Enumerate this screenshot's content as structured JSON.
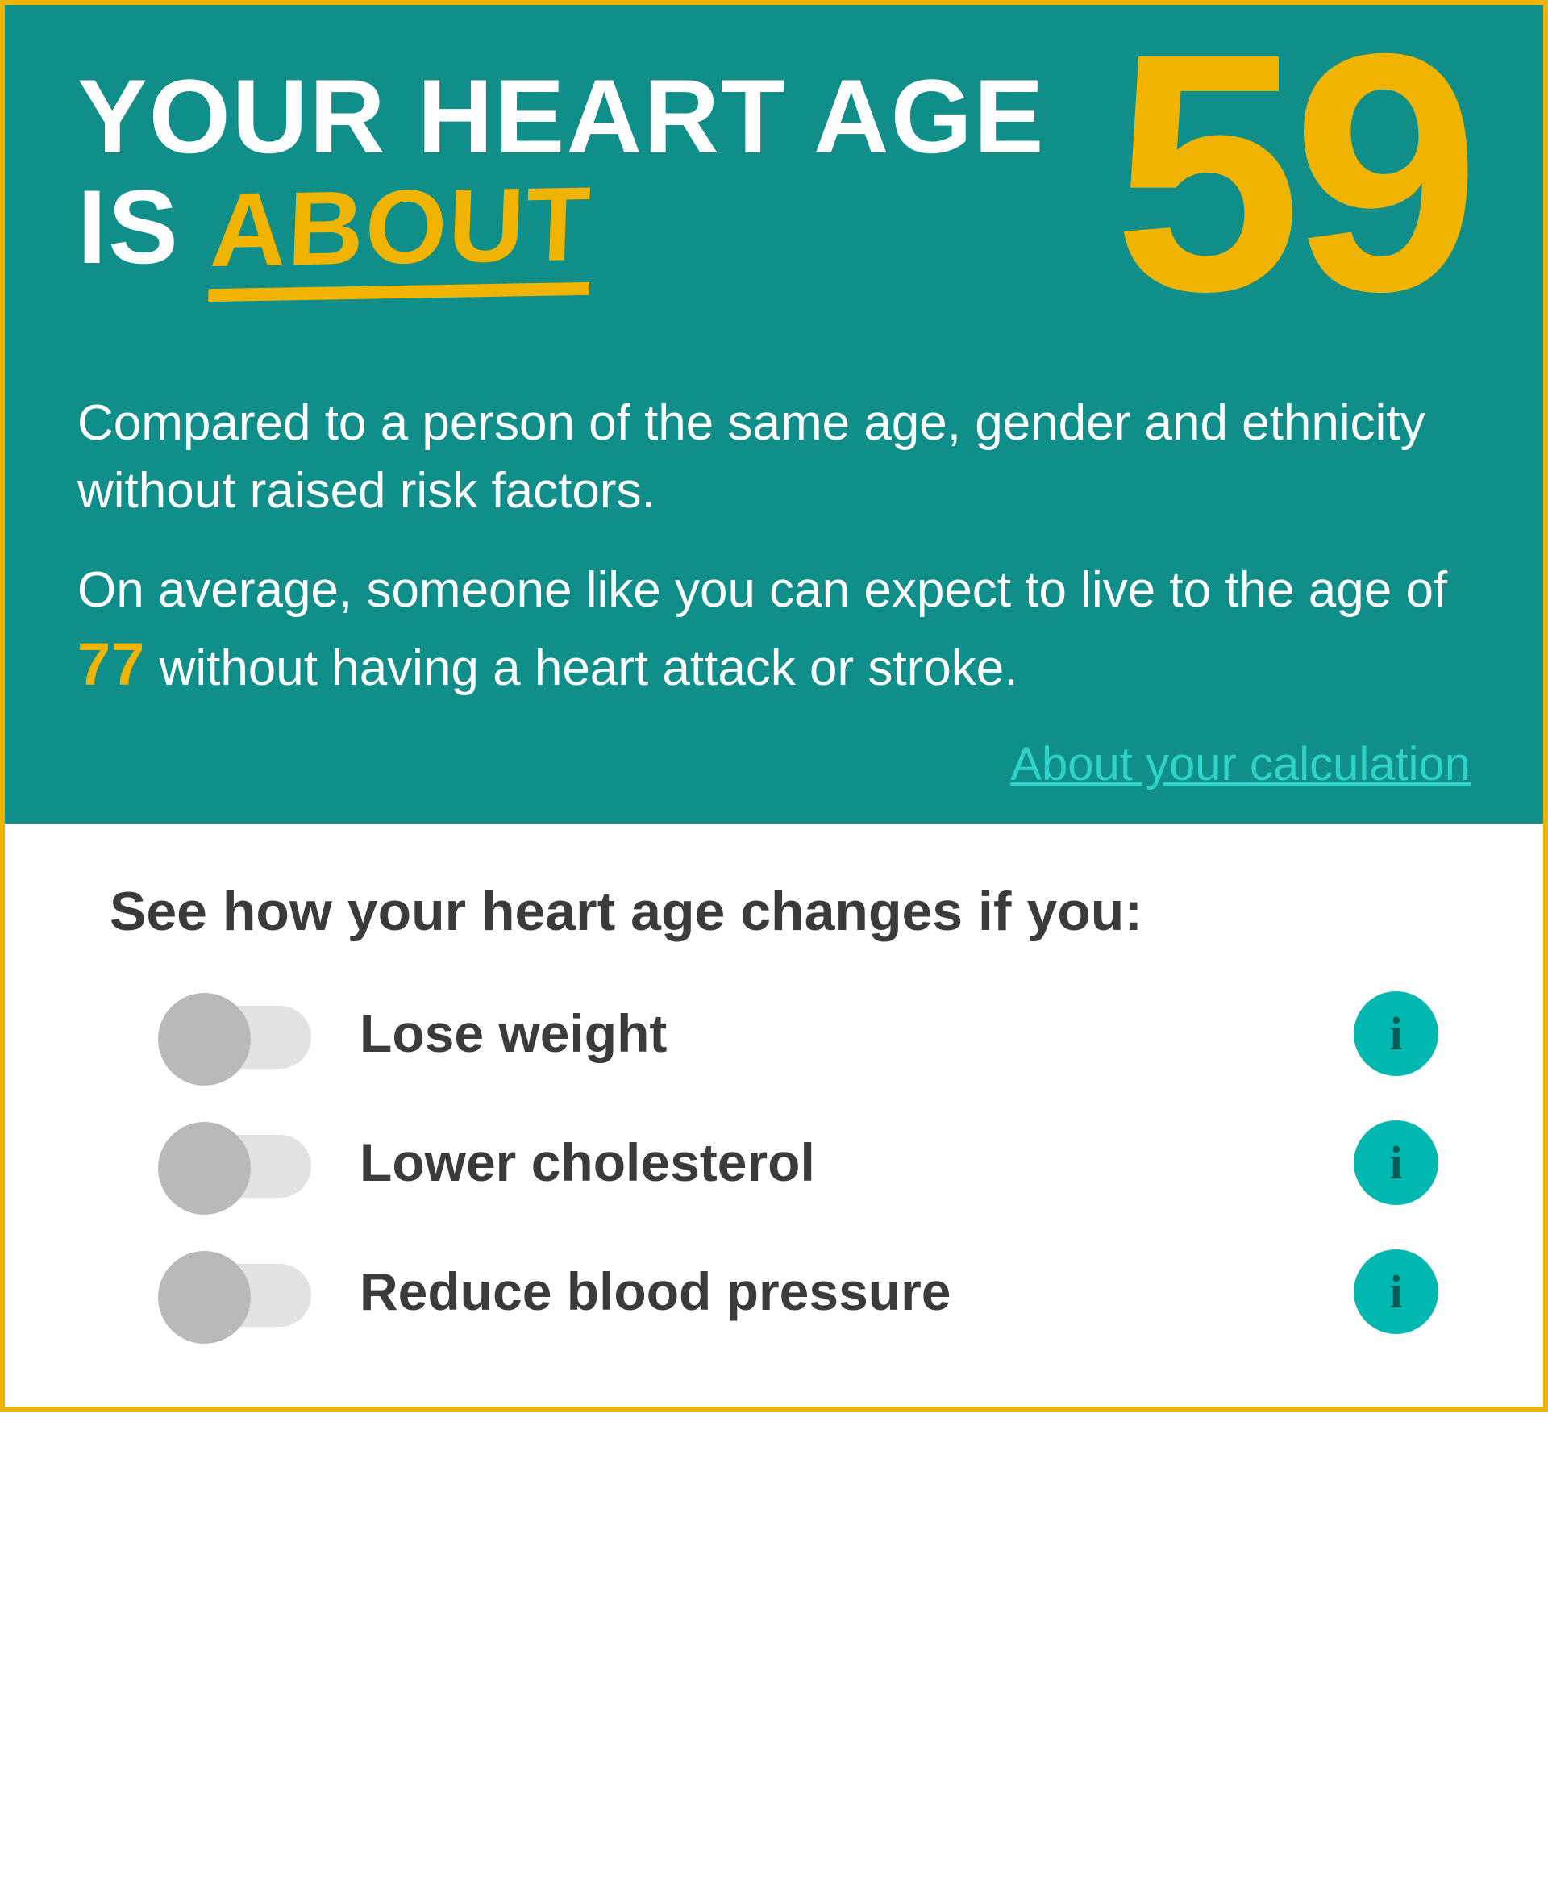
{
  "colors": {
    "teal_bg": "#0f8e8a",
    "gold": "#f0b400",
    "link_cyan": "#2fd3c9",
    "info_bg": "#00b8b0",
    "info_fg": "#0a5a56",
    "text_dark": "#3b3b3b",
    "toggle_track": "#e2e2e2",
    "toggle_knob": "#b9b9b9",
    "white": "#ffffff"
  },
  "headline": {
    "line1": "YOUR HEART AGE",
    "line2_prefix": "IS ",
    "line2_highlight": "ABOUT"
  },
  "heart_age": "59",
  "description": {
    "para1": "Compared to a person of the same age, gender and ethnicity without raised risk factors.",
    "para2_before": "On average, someone like you can expect to live to the age of ",
    "para2_age": "77",
    "para2_after": " without having a heart attack or stroke."
  },
  "about_link": "About your calculation",
  "factors": {
    "title": "See how your heart age changes if you:",
    "items": [
      {
        "label": "Lose weight"
      },
      {
        "label": "Lower cholesterol"
      },
      {
        "label": "Reduce blood pressure"
      }
    ],
    "info_glyph": "i"
  }
}
